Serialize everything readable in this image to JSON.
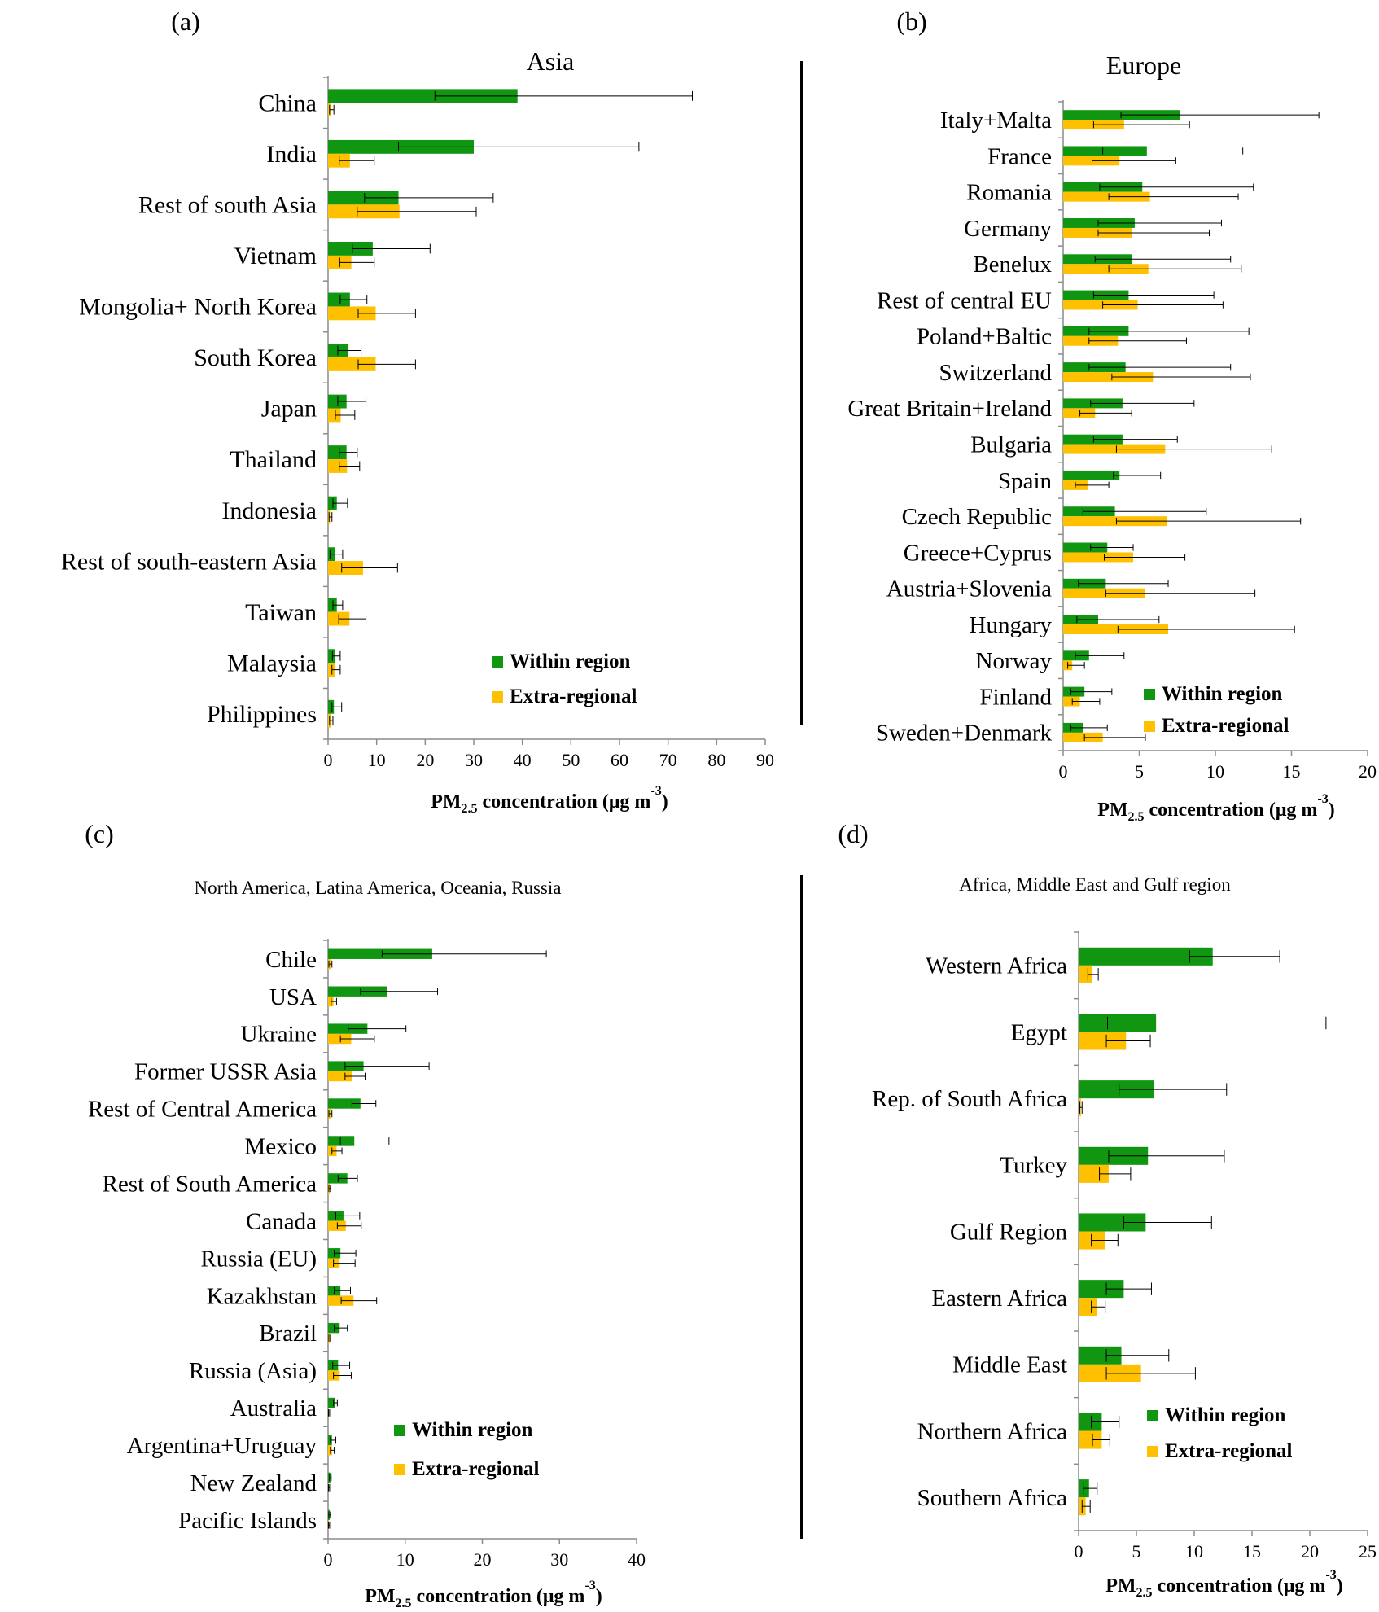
{
  "legend": {
    "within": "Within region",
    "extra": "Extra-regional"
  },
  "colors": {
    "within": "#119611",
    "extra": "#FFC000",
    "axis": "#8C8C8C",
    "text": "#000000"
  },
  "chart_data": [
    {
      "id": "a",
      "panel_label": "(a)",
      "title": "Asia",
      "type": "bar",
      "orientation": "horizontal",
      "xlabel_main": "PM",
      "xlabel_sub": "2.5",
      "xlabel_rest": " concentration (μg m",
      "xlabel_sup": "-3",
      "xlabel_end": ")",
      "xlim": [
        0,
        90
      ],
      "xticks": [
        0,
        10,
        20,
        30,
        40,
        50,
        60,
        70,
        80,
        90
      ],
      "legend_position": "bottom-right",
      "categories": [
        "China",
        "India",
        "Rest of south Asia",
        "Vietnam",
        "Mongolia+ North Korea",
        "South Korea",
        "Japan",
        "Thailand",
        "Indonesia",
        "Rest of south-eastern Asia",
        "Taiwan",
        "Malaysia",
        "Philippines"
      ],
      "series": [
        {
          "name": "Within region",
          "values": [
            39,
            30,
            14.5,
            9.2,
            4.5,
            4.2,
            3.8,
            3.8,
            1.8,
            1.4,
            1.8,
            1.5,
            1.2
          ],
          "err_low": [
            22,
            14.5,
            7.5,
            5,
            2.5,
            2,
            2,
            2.3,
            1,
            0.4,
            1,
            0.9,
            0.8
          ],
          "err_high": [
            75,
            64,
            34,
            21,
            8,
            6.8,
            7.8,
            6,
            4,
            3,
            3,
            2.5,
            2.8
          ]
        },
        {
          "name": "Extra-regional",
          "values": [
            0.5,
            4.5,
            14.7,
            4.8,
            9.8,
            9.8,
            2.6,
            3.9,
            0.4,
            7.2,
            4.4,
            1.4,
            0.5
          ],
          "err_low": [
            0.3,
            2.3,
            6,
            2.4,
            6.2,
            6.2,
            1.5,
            2.3,
            0.2,
            2.8,
            2.2,
            0.8,
            0.3
          ],
          "err_high": [
            1.2,
            9.5,
            30.5,
            9.5,
            18,
            18,
            5.5,
            6.5,
            0.8,
            14.3,
            7.8,
            2.5,
            1
          ]
        }
      ]
    },
    {
      "id": "b",
      "panel_label": "(b)",
      "title": "Europe",
      "type": "bar",
      "orientation": "horizontal",
      "xlabel_main": "PM",
      "xlabel_sub": "2.5",
      "xlabel_rest": " concentration (μg m",
      "xlabel_sup": "-3",
      "xlabel_end": ")",
      "xlim": [
        0,
        20
      ],
      "xticks": [
        0,
        5,
        10,
        15,
        20
      ],
      "legend_position": "bottom-right",
      "categories": [
        "Italy+Malta",
        "France",
        "Romania",
        "Germany",
        "Benelux",
        "Rest of central EU",
        "Poland+Baltic",
        "Switzerland",
        "Great Britain+Ireland",
        "Bulgaria",
        "Spain",
        "Czech Republic",
        "Greece+Cyprus",
        "Austria+Slovenia",
        "Hungary",
        "Norway",
        "Finland",
        "Sweden+Denmark"
      ],
      "series": [
        {
          "name": "Within region",
          "values": [
            7.7,
            5.5,
            5.2,
            4.7,
            4.5,
            4.3,
            4.3,
            4.1,
            3.9,
            3.9,
            3.7,
            3.4,
            2.9,
            2.8,
            2.3,
            1.7,
            1.4,
            1.3
          ],
          "err_low": [
            3.8,
            2.6,
            2.4,
            2.3,
            2.1,
            2,
            1.7,
            1.7,
            1.8,
            2,
            3.3,
            1.3,
            1.8,
            1,
            0.9,
            0.8,
            0.5,
            0.5
          ],
          "err_high": [
            16.8,
            11.8,
            12.5,
            10.4,
            11,
            9.9,
            12.2,
            11,
            8.6,
            7.5,
            6.4,
            9.4,
            4.6,
            6.9,
            6.3,
            4,
            3.2,
            2.9
          ]
        },
        {
          "name": "Extra-regional",
          "values": [
            4,
            3.7,
            5.7,
            4.5,
            5.6,
            4.9,
            3.6,
            5.9,
            2.1,
            6.7,
            1.6,
            6.8,
            4.6,
            5.4,
            6.9,
            0.6,
            1.1,
            2.6
          ],
          "err_low": [
            2,
            1.9,
            3,
            2.3,
            3,
            2.6,
            1.7,
            3.2,
            1.1,
            3.5,
            0.8,
            3.5,
            2.7,
            2.8,
            3.6,
            0.3,
            0.6,
            1.4
          ],
          "err_high": [
            8.3,
            7.4,
            11.5,
            9.6,
            11.7,
            10.5,
            8.1,
            12.3,
            4.5,
            13.7,
            3,
            15.6,
            8,
            12.6,
            15.2,
            1.4,
            2.4,
            5.4
          ]
        }
      ]
    },
    {
      "id": "c",
      "panel_label": "(c)",
      "title": "North America,  Latina America,  Oceania,  Russia",
      "type": "bar",
      "orientation": "horizontal",
      "xlabel_main": "PM",
      "xlabel_sub": "2.5",
      "xlabel_rest": " concentration (μg m",
      "xlabel_sup": "-3",
      "xlabel_end": ")",
      "xlim": [
        0,
        40
      ],
      "xticks": [
        0,
        10,
        20,
        30,
        40
      ],
      "legend_position": "bottom-right",
      "categories": [
        "Chile",
        "USA",
        "Ukraine",
        "Former USSR Asia",
        "Rest of Central America",
        "Mexico",
        "Rest of South America",
        "Canada",
        "Russia (EU)",
        "Kazakhstan",
        "Brazil",
        "Russia (Asia)",
        "Australia",
        "Argentina+Uruguay",
        "New Zealand",
        "Pacific Islands"
      ],
      "series": [
        {
          "name": "Within region",
          "values": [
            13.5,
            7.6,
            5.1,
            4.6,
            4.2,
            3.4,
            2.5,
            2,
            1.6,
            1.6,
            1.5,
            1.3,
            0.9,
            0.5,
            0.3,
            0.2
          ],
          "err_low": [
            7,
            4.2,
            2.6,
            2.2,
            3.1,
            1.6,
            1.3,
            1,
            0.8,
            0.8,
            0.8,
            0.6,
            0.7,
            0.3,
            0.2,
            0.1
          ],
          "err_high": [
            28.3,
            14.2,
            10.1,
            13.1,
            6.2,
            7.9,
            3.8,
            4.1,
            3.6,
            2.9,
            2.5,
            2.8,
            1.2,
            1,
            0.4,
            0.3
          ]
        },
        {
          "name": "Extra-regional",
          "values": [
            0.3,
            0.7,
            3,
            3.1,
            0.3,
            1.1,
            0.2,
            2.3,
            1.5,
            3.3,
            0.2,
            1.5,
            0.1,
            0.5,
            0.1,
            0.1
          ],
          "err_low": [
            0.1,
            0.4,
            1.6,
            2.2,
            0.1,
            0.5,
            0.1,
            1.2,
            0.7,
            1.7,
            0.1,
            0.7,
            0.05,
            0.3,
            0.05,
            0.05
          ],
          "err_high": [
            0.5,
            1.1,
            6,
            4.8,
            0.5,
            1.8,
            0.3,
            4.3,
            3.5,
            6.3,
            0.3,
            3,
            0.2,
            0.8,
            0.2,
            0.2
          ]
        }
      ]
    },
    {
      "id": "d",
      "panel_label": "(d)",
      "title": "Africa,  Middle East and Gulf region",
      "type": "bar",
      "orientation": "horizontal",
      "xlabel_main": "PM",
      "xlabel_sub": "2.5",
      "xlabel_rest": " concentration (μg m",
      "xlabel_sup": "-3",
      "xlabel_end": ")",
      "xlim": [
        0,
        25
      ],
      "xticks": [
        0,
        5,
        10,
        15,
        20,
        25
      ],
      "legend_position": "bottom-right",
      "categories": [
        "Western Africa",
        "Egypt",
        "Rep. of South Africa",
        "Turkey",
        "Gulf Region",
        "Eastern Africa",
        "Middle East",
        "Northern Africa",
        "Southern Africa"
      ],
      "series": [
        {
          "name": "Within region",
          "values": [
            11.6,
            6.7,
            6.5,
            6,
            5.8,
            3.9,
            3.7,
            2,
            0.9
          ],
          "err_low": [
            9.6,
            2.5,
            3.5,
            2.6,
            3.9,
            2.4,
            2.4,
            1.1,
            0.4
          ],
          "err_high": [
            17.4,
            21.4,
            12.8,
            12.6,
            11.5,
            6.3,
            7.8,
            3.5,
            1.6
          ]
        },
        {
          "name": "Extra-regional",
          "values": [
            1.2,
            4.1,
            0.2,
            2.6,
            2.3,
            1.6,
            5.4,
            2,
            0.6
          ],
          "err_low": [
            0.8,
            2.4,
            0.1,
            1.8,
            1.1,
            1.1,
            2.4,
            1.2,
            0.3
          ],
          "err_high": [
            1.7,
            6.2,
            0.3,
            4.5,
            3.4,
            2.3,
            10.1,
            2.7,
            1
          ]
        }
      ]
    }
  ]
}
